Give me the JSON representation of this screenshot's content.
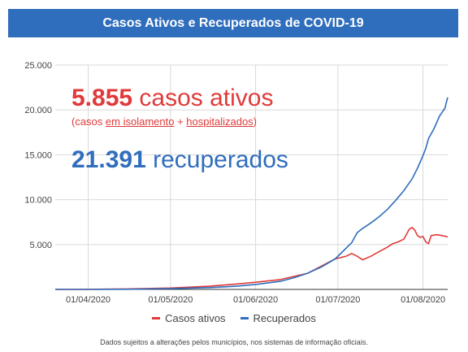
{
  "header": {
    "title": "Casos Ativos e Recuperados de COVID-19"
  },
  "highlights": {
    "active_value": "5.855",
    "active_text": "casos ativos",
    "active_sub_open": "(casos ",
    "active_sub_link1": "em isolamento",
    "active_sub_plus": " + ",
    "active_sub_link2": "hospitalizados",
    "active_sub_close": ")",
    "recovered_value": "21.391",
    "recovered_text": "recuperados"
  },
  "legend": {
    "active_label": "Casos ativos",
    "recovered_label": "Recuperados"
  },
  "footnote": "Dados sujeitos a alterações pelos municípios, nos sistemas de informação oficiais.",
  "colors": {
    "active": "#e03a3a",
    "recovered": "#2f6dbd",
    "grid": "#d9d9d9",
    "axis_text": "#444444",
    "title_bg": "#2f6dbd"
  },
  "chart_data": {
    "type": "line",
    "title": "Casos Ativos e Recuperados de COVID-19",
    "xlabel": "",
    "ylabel": "",
    "ylim": [
      0,
      25000
    ],
    "y_ticks": [
      "5.000",
      "10.000",
      "15.000",
      "20.000",
      "25.000"
    ],
    "x_ticks": [
      "01/04/2020",
      "01/05/2020",
      "01/06/2020",
      "01/07/2020",
      "01/08/2020"
    ],
    "grid": true,
    "legend_position": "bottom",
    "series": [
      {
        "name": "Casos ativos",
        "color": "#e03a3a",
        "points": [
          [
            "2020-03-20",
            0
          ],
          [
            "2020-04-01",
            10
          ],
          [
            "2020-04-15",
            50
          ],
          [
            "2020-05-01",
            150
          ],
          [
            "2020-05-15",
            350
          ],
          [
            "2020-05-25",
            600
          ],
          [
            "2020-06-01",
            800
          ],
          [
            "2020-06-10",
            1100
          ],
          [
            "2020-06-20",
            1800
          ],
          [
            "2020-06-25",
            2600
          ],
          [
            "2020-06-30",
            3400
          ],
          [
            "2020-07-04",
            3700
          ],
          [
            "2020-07-06",
            4000
          ],
          [
            "2020-07-08",
            3700
          ],
          [
            "2020-07-10",
            3300
          ],
          [
            "2020-07-13",
            3700
          ],
          [
            "2020-07-16",
            4200
          ],
          [
            "2020-07-19",
            4700
          ],
          [
            "2020-07-21",
            5100
          ],
          [
            "2020-07-23",
            5300
          ],
          [
            "2020-07-25",
            5600
          ],
          [
            "2020-07-27",
            6700
          ],
          [
            "2020-07-28",
            6900
          ],
          [
            "2020-07-29",
            6600
          ],
          [
            "2020-07-30",
            6000
          ],
          [
            "2020-07-31",
            5800
          ],
          [
            "2020-08-01",
            5900
          ],
          [
            "2020-08-02",
            5300
          ],
          [
            "2020-08-03",
            5100
          ],
          [
            "2020-08-04",
            6000
          ],
          [
            "2020-08-06",
            6100
          ],
          [
            "2020-08-08",
            6000
          ],
          [
            "2020-08-10",
            5855
          ]
        ]
      },
      {
        "name": "Recuperados",
        "color": "#2f6dbd",
        "points": [
          [
            "2020-03-20",
            0
          ],
          [
            "2020-04-01",
            0
          ],
          [
            "2020-04-15",
            20
          ],
          [
            "2020-05-01",
            80
          ],
          [
            "2020-05-15",
            200
          ],
          [
            "2020-05-25",
            350
          ],
          [
            "2020-06-01",
            550
          ],
          [
            "2020-06-10",
            900
          ],
          [
            "2020-06-15",
            1300
          ],
          [
            "2020-06-20",
            1800
          ],
          [
            "2020-06-25",
            2500
          ],
          [
            "2020-06-30",
            3400
          ],
          [
            "2020-07-03",
            4300
          ],
          [
            "2020-07-06",
            5200
          ],
          [
            "2020-07-08",
            6300
          ],
          [
            "2020-07-10",
            6800
          ],
          [
            "2020-07-13",
            7400
          ],
          [
            "2020-07-16",
            8100
          ],
          [
            "2020-07-19",
            8900
          ],
          [
            "2020-07-22",
            9900
          ],
          [
            "2020-07-25",
            11000
          ],
          [
            "2020-07-28",
            12300
          ],
          [
            "2020-07-30",
            13500
          ],
          [
            "2020-08-01",
            14900
          ],
          [
            "2020-08-02",
            15700
          ],
          [
            "2020-08-03",
            16800
          ],
          [
            "2020-08-05",
            17900
          ],
          [
            "2020-08-07",
            19300
          ],
          [
            "2020-08-09",
            20200
          ],
          [
            "2020-08-10",
            21391
          ]
        ]
      }
    ]
  }
}
